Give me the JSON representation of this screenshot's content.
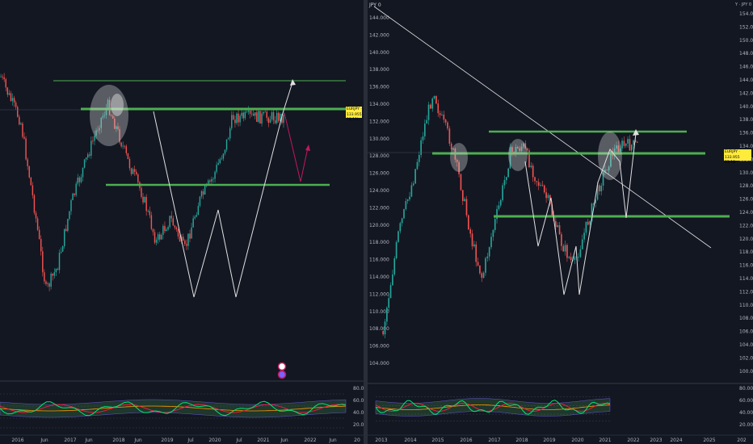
{
  "left_chart": {
    "name": "left-chart",
    "price_tag": "EURJPY · 133.955",
    "price_tag_sub": "18:11h",
    "time_labels": [
      "2016",
      "Jun",
      "2017",
      "Jun",
      "2018",
      "Jun",
      "2019",
      "Jul",
      "2020",
      "Jul",
      "2021",
      "Jun",
      "2022",
      "Jun",
      "20"
    ],
    "osc_labels": [
      "80.00",
      "60.00",
      "40.00",
      "20.00"
    ]
  },
  "right_chart": {
    "name": "right-chart",
    "symbol": "JPY 0",
    "symbol_right": "Y · JPY 0",
    "price_tag": "EURJPY · 133.955",
    "price_tag_sub": "23:18",
    "price_labels": [
      "154.000",
      "152.000",
      "150.000",
      "148.000",
      "146.000",
      "144.000",
      "142.000",
      "140.000",
      "138.000",
      "136.000",
      "134.000",
      "132.000",
      "130.000",
      "128.000",
      "126.000",
      "124.000",
      "122.000",
      "120.000",
      "118.000",
      "116.000",
      "114.000",
      "112.000",
      "110.000",
      "108.000",
      "106.000",
      "104.000",
      "102.000",
      "100.000"
    ],
    "mid_axis_labels": [
      "144.000",
      "142.000",
      "140.000",
      "138.000",
      "136.000",
      "134.000",
      "132.000",
      "130.000",
      "128.000",
      "126.000",
      "124.000",
      "122.000",
      "120.000",
      "118.000",
      "116.000",
      "114.000",
      "112.000",
      "110.000",
      "108.000",
      "106.000",
      "104.000"
    ],
    "time_labels": [
      "2013",
      "2014",
      "2015",
      "2016",
      "2017",
      "2018",
      "2019",
      "2020",
      "2021",
      "2022",
      "2023",
      "2024",
      "2025",
      "202"
    ],
    "osc_labels": [
      "80.00",
      "60.00",
      "40.00",
      "20.00"
    ]
  },
  "colors": {
    "background": "#131722",
    "bull": "#26a69a",
    "bear": "#ef5350",
    "support": "#4caf50",
    "osc_green": "#00e676",
    "osc_red": "#ff1744",
    "grid": "#2a2e39"
  }
}
